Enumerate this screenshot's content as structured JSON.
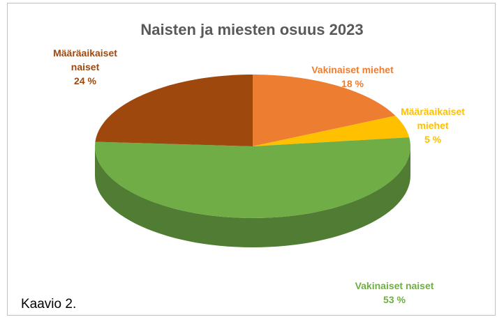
{
  "chart_data": {
    "type": "pie",
    "title": "Naisten ja miesten osuus 2023",
    "categories": [
      "Vakinaiset miehet",
      "Määräaikaiset miehet",
      "Vakinaiset naiset",
      "Määräaikaiset naiset"
    ],
    "values": [
      18,
      5,
      53,
      24
    ],
    "value_labels": [
      "18 %",
      "5 %",
      "53 %",
      "24 %"
    ],
    "colors": [
      "#ed7d31",
      "#ffc000",
      "#70ad47",
      "#9e480e"
    ]
  },
  "caption": "Kaavio 2."
}
